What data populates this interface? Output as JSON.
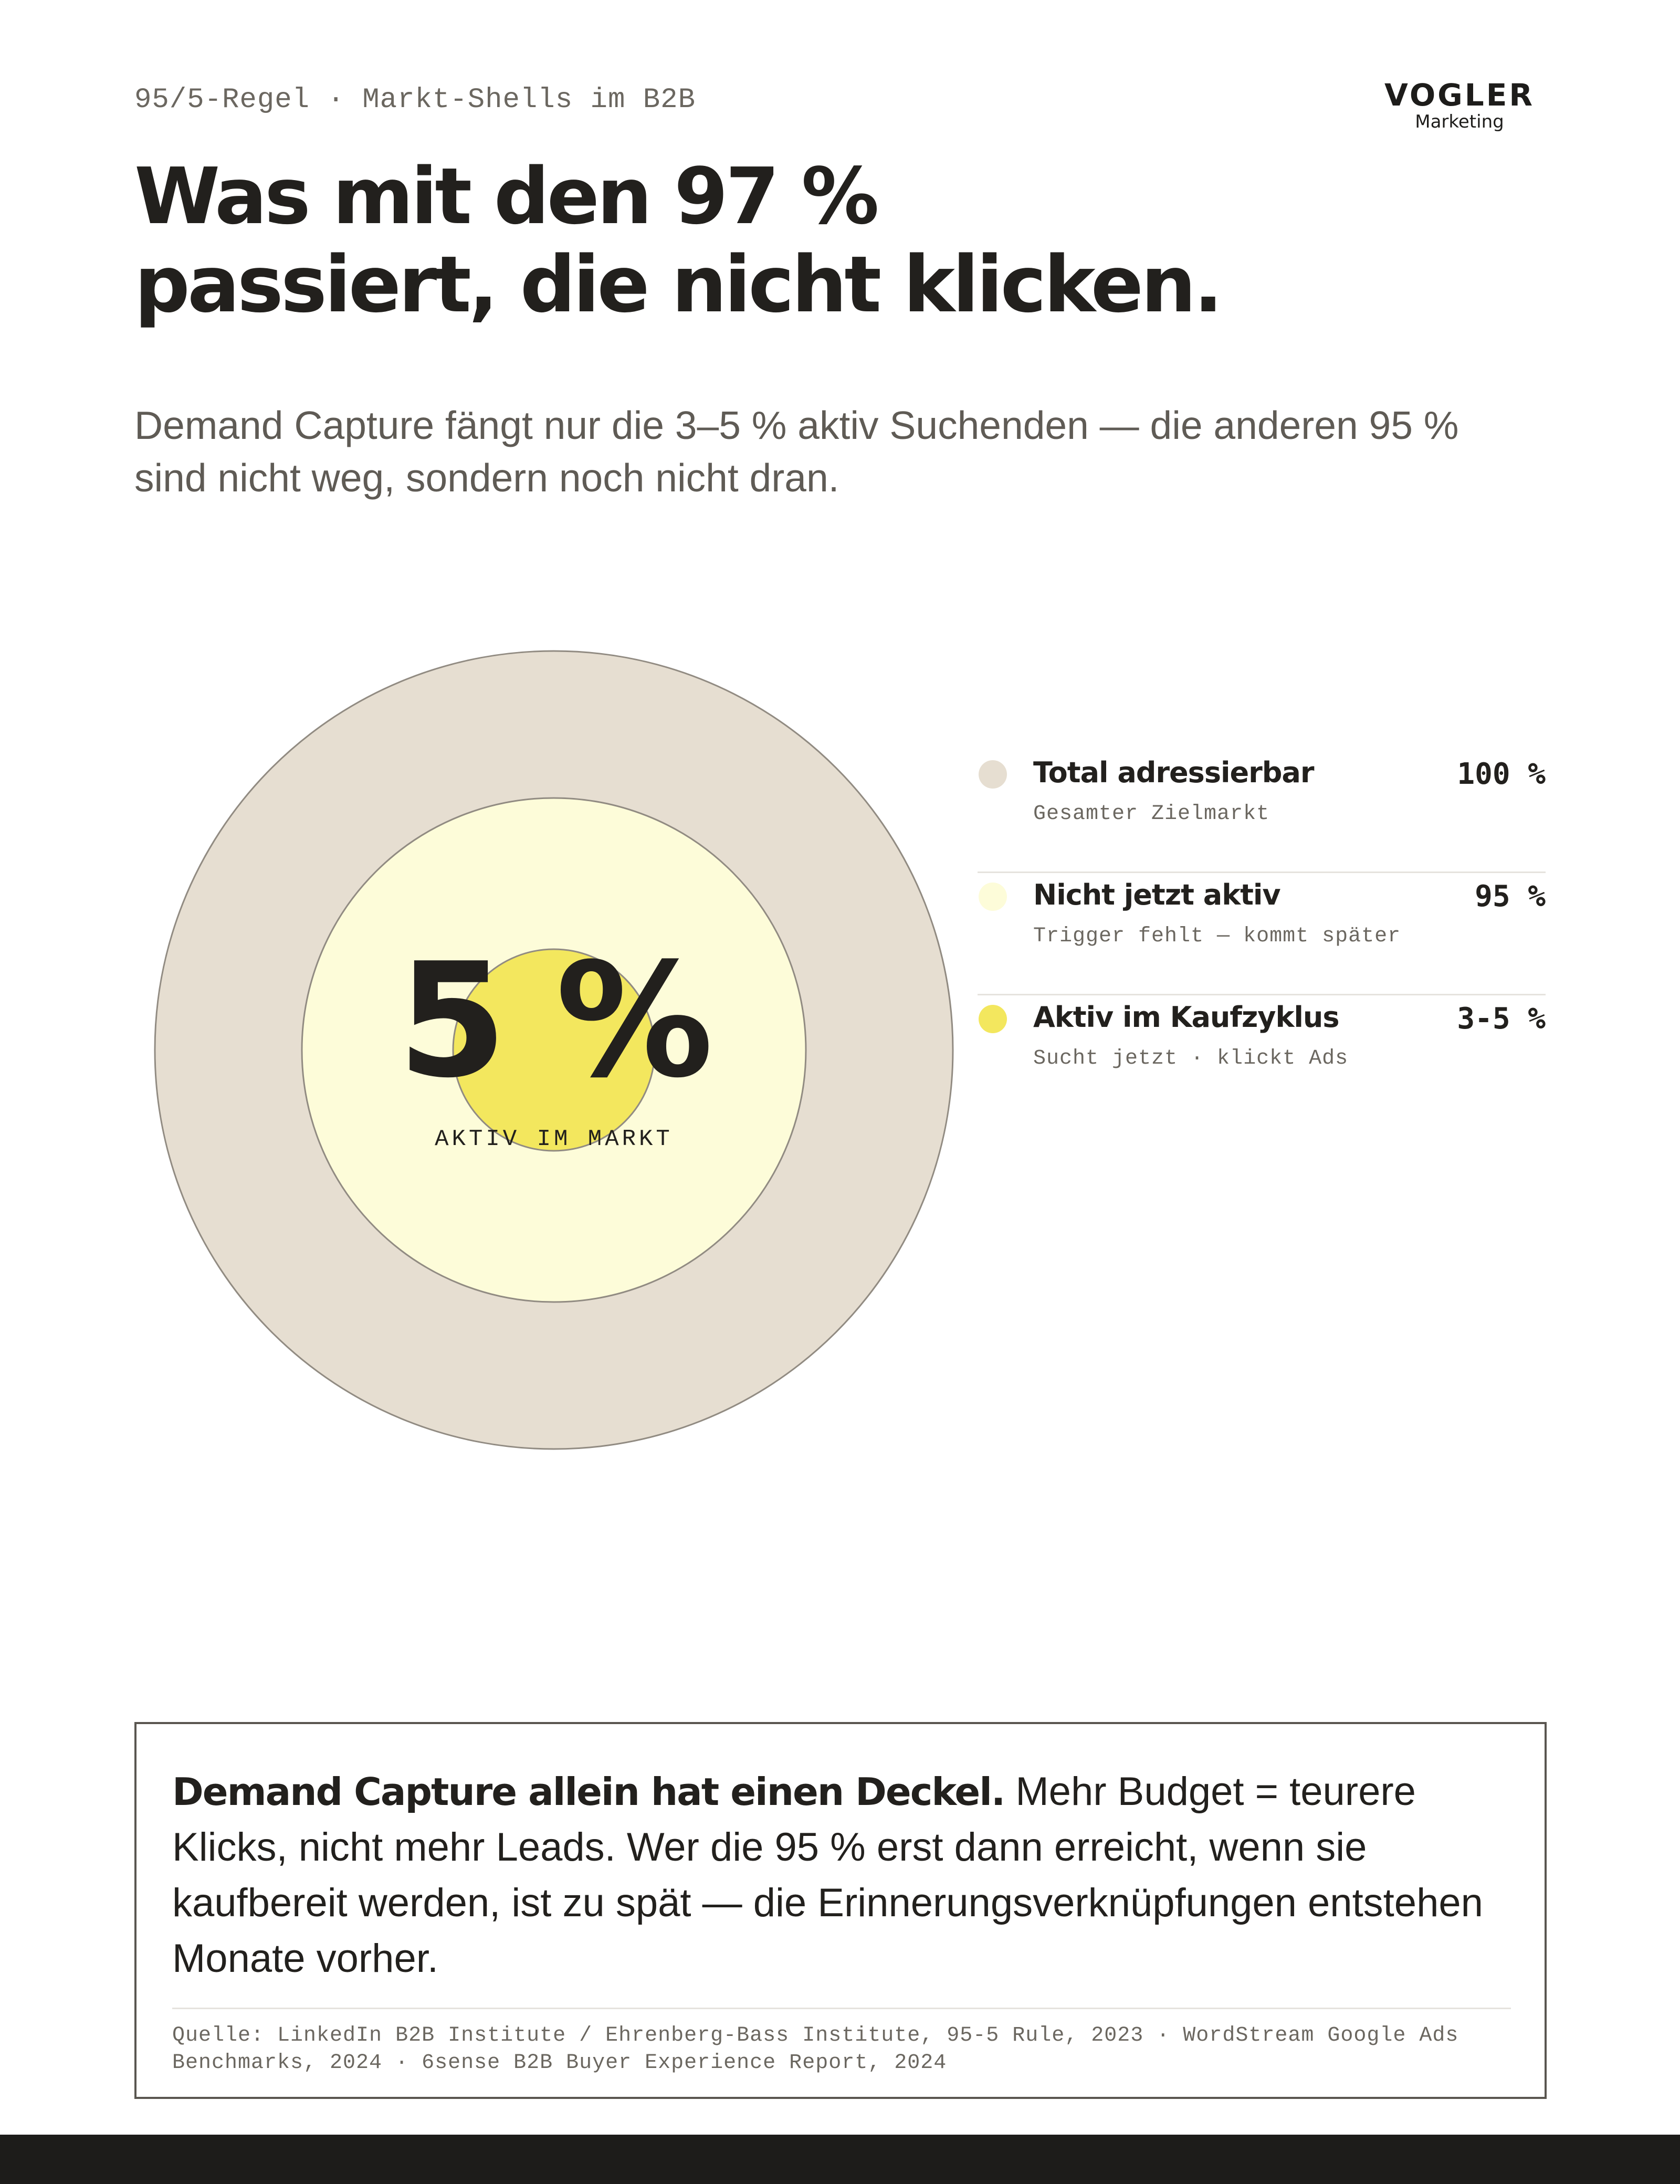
{
  "eyebrow": "95/5-Regel · Markt-Shells im B2B",
  "brand": {
    "name": "VOGLER",
    "tagline": "Marketing"
  },
  "headline": {
    "line1": "Was mit den 97 %",
    "line2": "passiert, die nicht klicken."
  },
  "subline": {
    "line1": "Demand Capture fängt nur die 3–5 % aktiv Suchenden — die anderen 95 %",
    "line2": "sind nicht weg, sondern noch nicht dran."
  },
  "diagram": {
    "center_value": "5 %",
    "center_label": "AKTIV IM MARKT",
    "rings": [
      {
        "title": "Total adressierbar",
        "subtitle": "Gesamter Zielmarkt",
        "value": "100 %",
        "color": "#e6ded1"
      },
      {
        "title": "Nicht jetzt aktiv",
        "subtitle": "Trigger fehlt — kommt später",
        "value": "95 %",
        "color": "#fdfcd9"
      },
      {
        "title": "Aktiv im Kaufzyklus",
        "subtitle": "Sucht jetzt · klickt Ads",
        "value": "3-5 %",
        "color": "#f3e75e"
      }
    ],
    "stroke_color": "#918b82"
  },
  "callout": {
    "bold": "Demand Capture allein hat einen Deckel.",
    "text": " Mehr Budget = teurere Klicks, nicht mehr Leads. Wer die 95 % erst dann erreicht, wenn sie kaufbereit werden, ist zu spät — die Erinnerungsverknüpfungen entstehen Monate vorher.",
    "source_line1": "Quelle: LinkedIn B2B Institute / Ehrenberg-Bass Institute, 95-5 Rule, 2023 · WordStream Google Ads",
    "source_line2": "Benchmarks, 2024 · 6sense B2B Buyer Experience Report, 2024"
  }
}
